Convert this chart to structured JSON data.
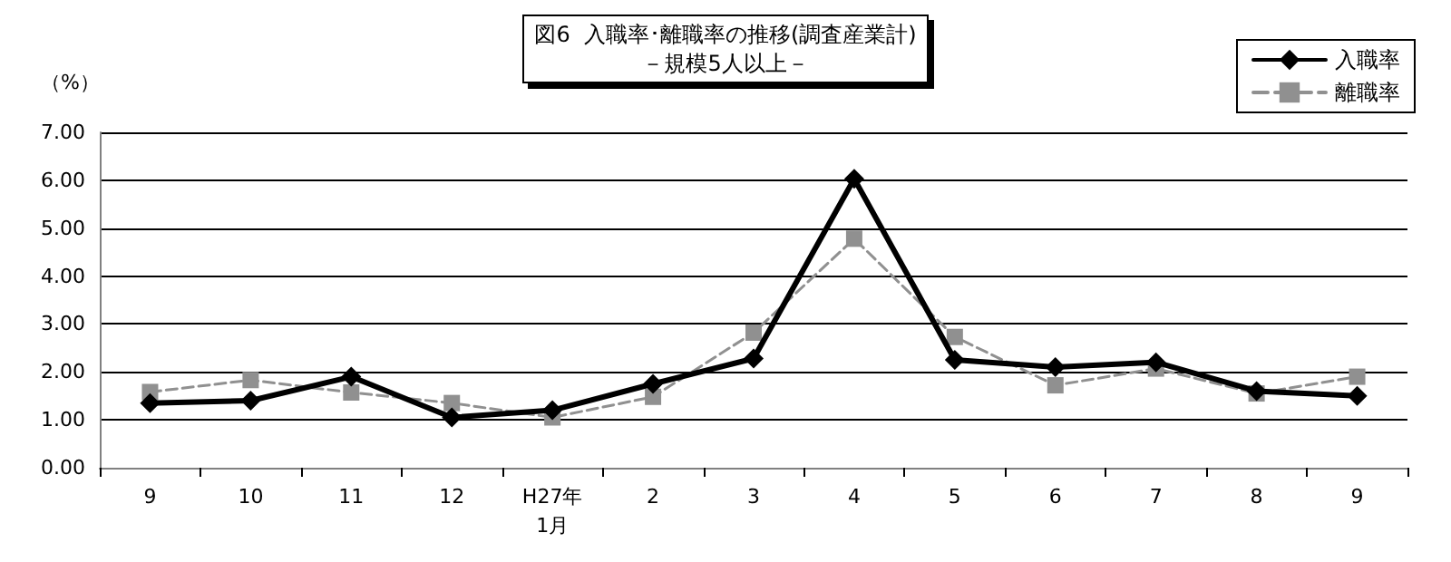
{
  "chart_data": {
    "type": "line",
    "title": "図6  入職率･離職率の推移(調査産業計)\n－規模5人以上－",
    "ylabel": "（%）",
    "categories": [
      "9",
      "10",
      "11",
      "12",
      "H27年\n1月",
      "2",
      "3",
      "4",
      "5",
      "6",
      "7",
      "8",
      "9"
    ],
    "series": [
      {
        "name": "入職率",
        "color": "#000000",
        "marker": "diamond",
        "line_style": "solid",
        "values": [
          1.35,
          1.4,
          1.9,
          1.05,
          1.2,
          1.75,
          2.28,
          6.03,
          2.25,
          2.1,
          2.2,
          1.6,
          1.5
        ]
      },
      {
        "name": "離職率",
        "color": "#909090",
        "marker": "square",
        "line_style": "dashed",
        "values": [
          1.58,
          1.83,
          1.57,
          1.35,
          1.05,
          1.48,
          2.82,
          4.78,
          2.73,
          1.72,
          2.07,
          1.55,
          1.9
        ]
      }
    ],
    "ylim": [
      0,
      7
    ],
    "yticks": [
      {
        "value": 0,
        "label": "0.00"
      },
      {
        "value": 1,
        "label": "1.00"
      },
      {
        "value": 2,
        "label": "2.00"
      },
      {
        "value": 3,
        "label": "3.00"
      },
      {
        "value": 4,
        "label": "4.00"
      },
      {
        "value": 5,
        "label": "5.00"
      },
      {
        "value": 6,
        "label": "6.00"
      },
      {
        "value": 7,
        "label": "7.00"
      }
    ],
    "grid": "y",
    "legend": "top right"
  }
}
